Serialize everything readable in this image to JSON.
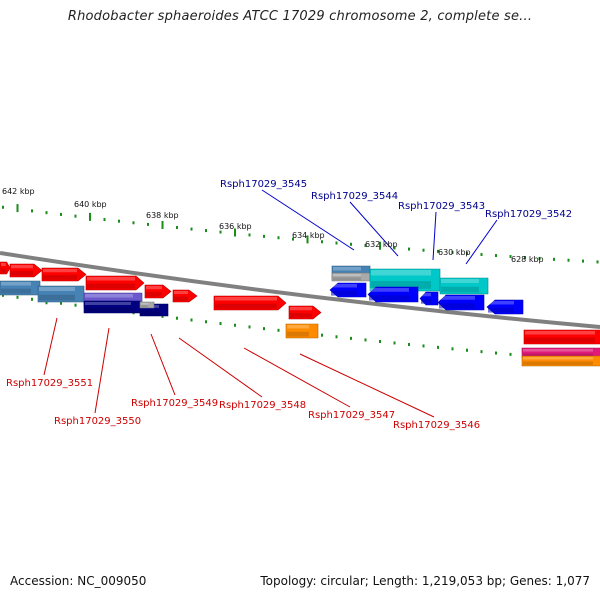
{
  "title": "Rhodobacter sphaeroides ATCC 17029 chromosome 2, complete se...",
  "footer": {
    "accession": "Accession: NC_009050",
    "summary": "Topology: circular; Length: 1,219,053 bp; Genes: 1,077"
  },
  "colors": {
    "backbone": "#808080",
    "ruler": "#1a8c1a",
    "top_label": "#00008b",
    "bottom_label": "#cc0000",
    "red": "#ff0000",
    "blue": "#0000ff",
    "cyan": "#00c8c8",
    "steelblue": "#4682b4",
    "slateblue": "#6a5acd",
    "navy": "#000080",
    "orange": "#ff8c00",
    "magenta": "#e0197a",
    "gray": "#a9a9a9"
  },
  "ticks": [
    "642 kbp",
    "640 kbp",
    "638 kbp",
    "636 kbp",
    "634 kbp",
    "632 kbp",
    "630 kbp",
    "628 kbp"
  ],
  "top_labels": [
    "Rsph17029_3545",
    "Rsph17029_3544",
    "Rsph17029_3543",
    "Rsph17029_3542"
  ],
  "bottom_labels": [
    "Rsph17029_3551",
    "Rsph17029_3550",
    "Rsph17029_3549",
    "Rsph17029_3548",
    "Rsph17029_3547",
    "Rsph17029_3546"
  ]
}
